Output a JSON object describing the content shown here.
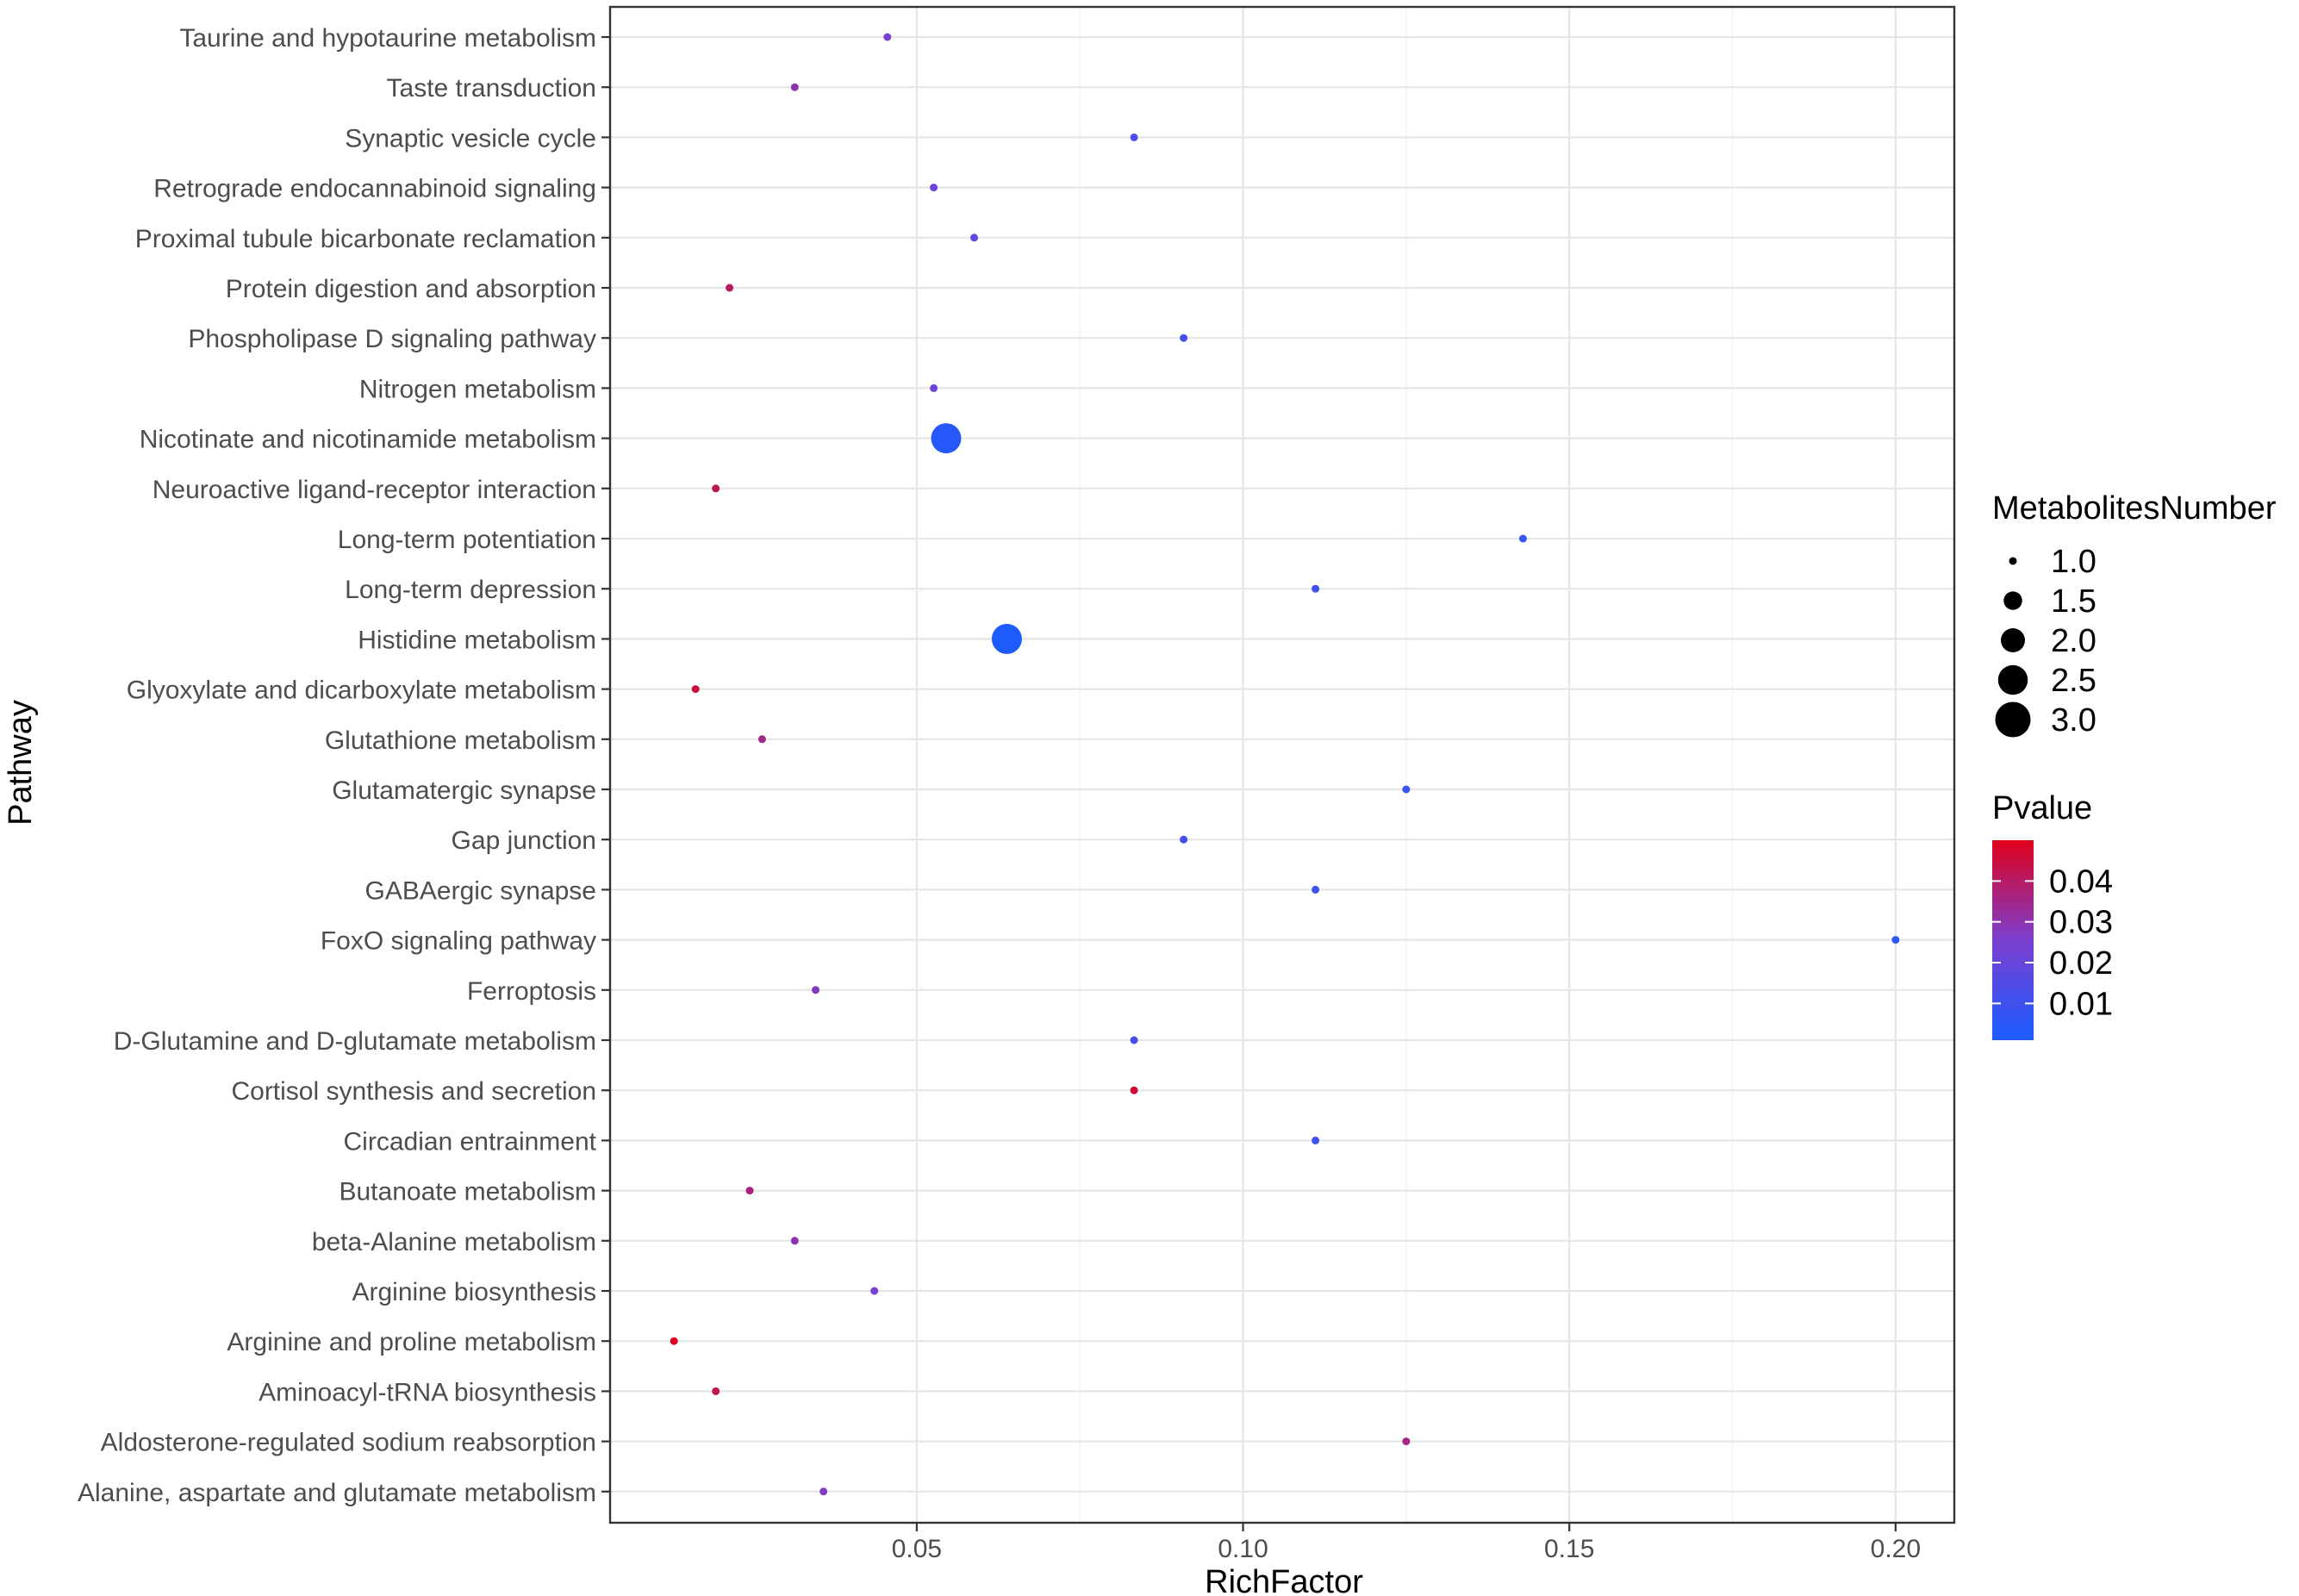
{
  "chart_data": {
    "type": "scatter",
    "xlabel": "RichFactor",
    "ylabel": "Pathway",
    "xlim": [
      0.003,
      0.209
    ],
    "x_ticks": [
      "0.05",
      "0.10",
      "0.15",
      "0.20"
    ],
    "x_tick_values": [
      0.05,
      0.1,
      0.15,
      0.2
    ],
    "grid": true,
    "pathways": [
      {
        "label": "Taurine and hypotaurine metabolism",
        "x": 0.0455,
        "pvalue": 0.025,
        "count": 1
      },
      {
        "label": "Taste transduction",
        "x": 0.0313,
        "pvalue": 0.03,
        "count": 1
      },
      {
        "label": "Synaptic vesicle cycle",
        "x": 0.0833,
        "pvalue": 0.013,
        "count": 1
      },
      {
        "label": "Retrograde endocannabinoid signaling",
        "x": 0.0526,
        "pvalue": 0.022,
        "count": 1
      },
      {
        "label": "Proximal tubule bicarbonate reclamation",
        "x": 0.0588,
        "pvalue": 0.019,
        "count": 1
      },
      {
        "label": "Protein digestion and absorption",
        "x": 0.0213,
        "pvalue": 0.04,
        "count": 1
      },
      {
        "label": "Phospholipase D signaling pathway",
        "x": 0.0909,
        "pvalue": 0.011,
        "count": 1
      },
      {
        "label": "Nitrogen metabolism",
        "x": 0.0526,
        "pvalue": 0.022,
        "count": 1
      },
      {
        "label": "Nicotinate and nicotinamide metabolism",
        "x": 0.0545,
        "pvalue": 0.004,
        "count": 3
      },
      {
        "label": "Neuroactive ligand-receptor interaction",
        "x": 0.0192,
        "pvalue": 0.042,
        "count": 1
      },
      {
        "label": "Long-term potentiation",
        "x": 0.1429,
        "pvalue": 0.008,
        "count": 1
      },
      {
        "label": "Long-term depression",
        "x": 0.1111,
        "pvalue": 0.01,
        "count": 1
      },
      {
        "label": "Histidine metabolism",
        "x": 0.0638,
        "pvalue": 0.002,
        "count": 3
      },
      {
        "label": "Glyoxylate and dicarboxylate metabolism",
        "x": 0.0161,
        "pvalue": 0.045,
        "count": 1
      },
      {
        "label": "Glutathione metabolism",
        "x": 0.0263,
        "pvalue": 0.035,
        "count": 1
      },
      {
        "label": "Glutamatergic synapse",
        "x": 0.125,
        "pvalue": 0.009,
        "count": 1
      },
      {
        "label": "Gap junction",
        "x": 0.0909,
        "pvalue": 0.011,
        "count": 1
      },
      {
        "label": "GABAergic synapse",
        "x": 0.1111,
        "pvalue": 0.01,
        "count": 1
      },
      {
        "label": "FoxO signaling pathway",
        "x": 0.2,
        "pvalue": 0.006,
        "count": 1
      },
      {
        "label": "Ferroptosis",
        "x": 0.0345,
        "pvalue": 0.028,
        "count": 1
      },
      {
        "label": "D-Glutamine and D-glutamate metabolism",
        "x": 0.0833,
        "pvalue": 0.013,
        "count": 1
      },
      {
        "label": "Cortisol synthesis and secretion",
        "x": 0.0833,
        "pvalue": 0.046,
        "count": 1
      },
      {
        "label": "Circadian entrainment",
        "x": 0.1111,
        "pvalue": 0.01,
        "count": 1
      },
      {
        "label": "Butanoate metabolism",
        "x": 0.0244,
        "pvalue": 0.037,
        "count": 1
      },
      {
        "label": "beta-Alanine metabolism",
        "x": 0.0313,
        "pvalue": 0.03,
        "count": 1
      },
      {
        "label": "Arginine biosynthesis",
        "x": 0.0435,
        "pvalue": 0.025,
        "count": 1
      },
      {
        "label": "Arginine and proline metabolism",
        "x": 0.0128,
        "pvalue": 0.049,
        "count": 1
      },
      {
        "label": "Aminoacyl-tRNA biosynthesis",
        "x": 0.0192,
        "pvalue": 0.042,
        "count": 1
      },
      {
        "label": "Aldosterone-regulated sodium reabsorption",
        "x": 0.125,
        "pvalue": 0.035,
        "count": 1
      },
      {
        "label": "Alanine, aspartate and glutamate metabolism",
        "x": 0.0357,
        "pvalue": 0.027,
        "count": 1
      }
    ],
    "legend_size": {
      "title": "MetabolitesNumber",
      "entries": [
        "1.0",
        "1.5",
        "2.0",
        "2.5",
        "3.0"
      ],
      "values": [
        1.0,
        1.5,
        2.0,
        2.5,
        3.0
      ]
    },
    "legend_color": {
      "title": "Pvalue",
      "entries": [
        "0.04",
        "0.03",
        "0.02",
        "0.01"
      ],
      "values": [
        0.04,
        0.03,
        0.02,
        0.01
      ],
      "range": [
        0.001,
        0.05
      ],
      "low_color": "#1a5cff",
      "mid_color": "#7b3fd0",
      "high_color": "#e0001a"
    },
    "legend_placement": "right"
  }
}
